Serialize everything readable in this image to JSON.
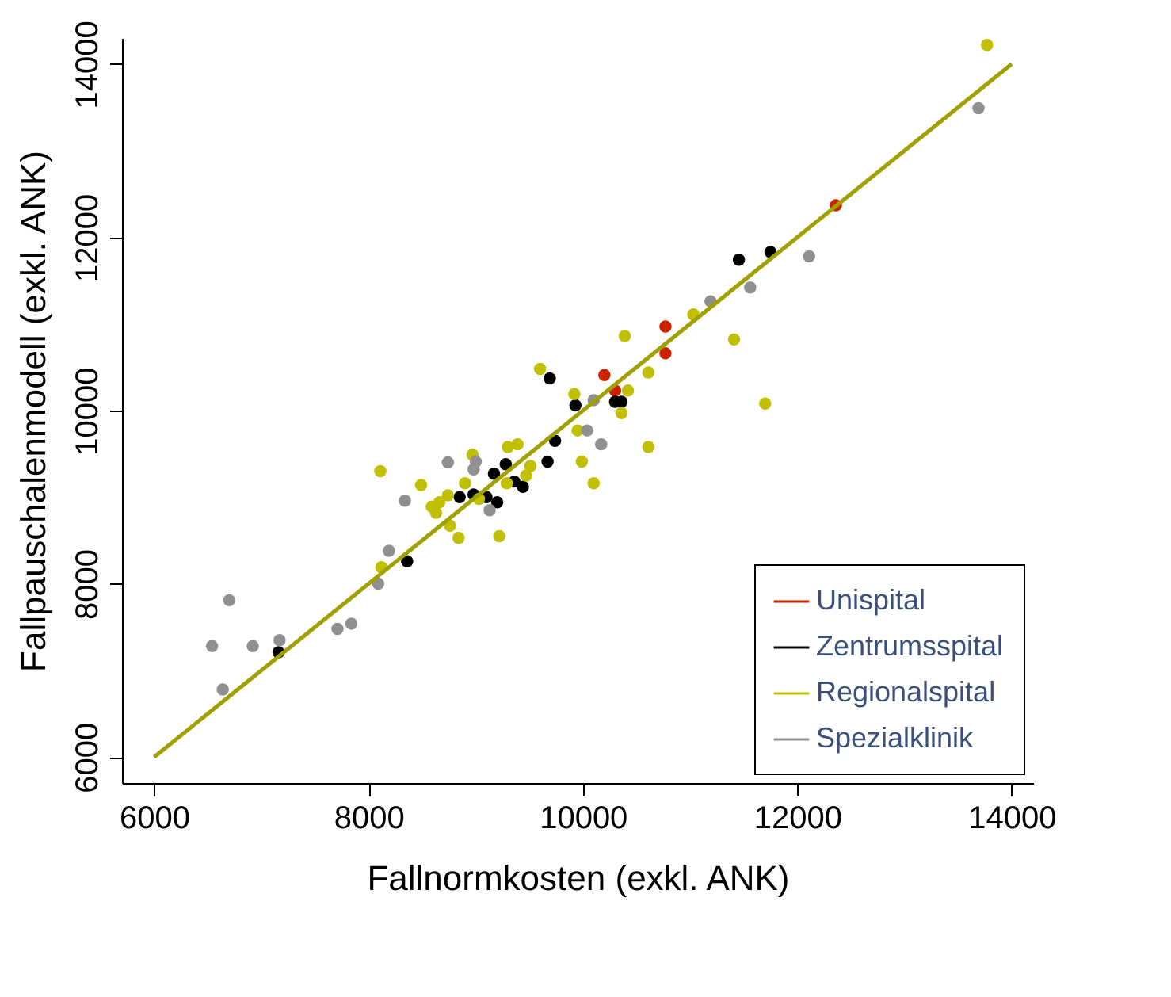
{
  "chart_data": {
    "type": "scatter",
    "xlabel": "Fallnormkosten (exkl. ANK)",
    "ylabel": "Fallpauschalenmodell (exkl. ANK)",
    "xlim": [
      5700,
      14200
    ],
    "ylim": [
      5700,
      14300
    ],
    "xticks": [
      6000,
      8000,
      10000,
      12000,
      14000
    ],
    "yticks": [
      6000,
      8000,
      10000,
      12000,
      14000
    ],
    "grid": false,
    "legend": "bottom right",
    "marker": "circle",
    "series": [
      {
        "name": "Unispital",
        "color": "#cc2200",
        "x": [
          12360,
          10770,
          10770,
          10200,
          10300
        ],
        "values": [
          12370,
          10970,
          10660,
          10410,
          10230
        ]
      },
      {
        "name": "Zentrumsspital",
        "color": "#000000",
        "x": [
          11455,
          11750,
          9690,
          9930,
          10300,
          10360,
          9740,
          9670,
          9280,
          9170,
          9360,
          9440,
          8850,
          8980,
          9100,
          9200,
          8360,
          7160
        ],
        "values": [
          11740,
          11830,
          10370,
          10060,
          10100,
          10100,
          9650,
          9410,
          9380,
          9270,
          9180,
          9120,
          9000,
          9030,
          9000,
          8940,
          8260,
          7210
        ]
      },
      {
        "name": "Regionalspital",
        "color": "#c0c000",
        "x": [
          13770,
          11030,
          10390,
          11410,
          10610,
          9600,
          9920,
          10420,
          10360,
          11700,
          9950,
          10610,
          9990,
          10100,
          8110,
          8490,
          8970,
          9300,
          9390,
          9510,
          9470,
          8900,
          8740,
          8660,
          8590,
          8630,
          8760,
          8840,
          9220,
          9030,
          9290,
          8120
        ],
        "values": [
          14220,
          11110,
          10860,
          10820,
          10440,
          10480,
          10190,
          10230,
          9970,
          10080,
          9770,
          9580,
          9410,
          9160,
          9300,
          9140,
          9490,
          9580,
          9610,
          9360,
          9250,
          9160,
          9020,
          8940,
          8890,
          8820,
          8670,
          8530,
          8550,
          8980,
          9160,
          8190
        ]
      },
      {
        "name": "Spezialklinik",
        "color": "#909090",
        "x": [
          6700,
          6540,
          6920,
          7170,
          6640,
          7710,
          7840,
          8090,
          8190,
          8340,
          8740,
          9000,
          8980,
          9130,
          10040,
          10100,
          10170,
          11190,
          11560,
          12110,
          13690
        ],
        "values": [
          7810,
          7280,
          7280,
          7350,
          6780,
          7480,
          7540,
          8000,
          8380,
          8960,
          9400,
          9410,
          9320,
          8850,
          9770,
          10120,
          9610,
          11260,
          11420,
          11780,
          13490
        ]
      },
      {
        "type": "line",
        "marker": "none",
        "color": "#a0a000",
        "x": [
          6000,
          14000
        ],
        "values": [
          6000,
          14000
        ]
      }
    ]
  }
}
